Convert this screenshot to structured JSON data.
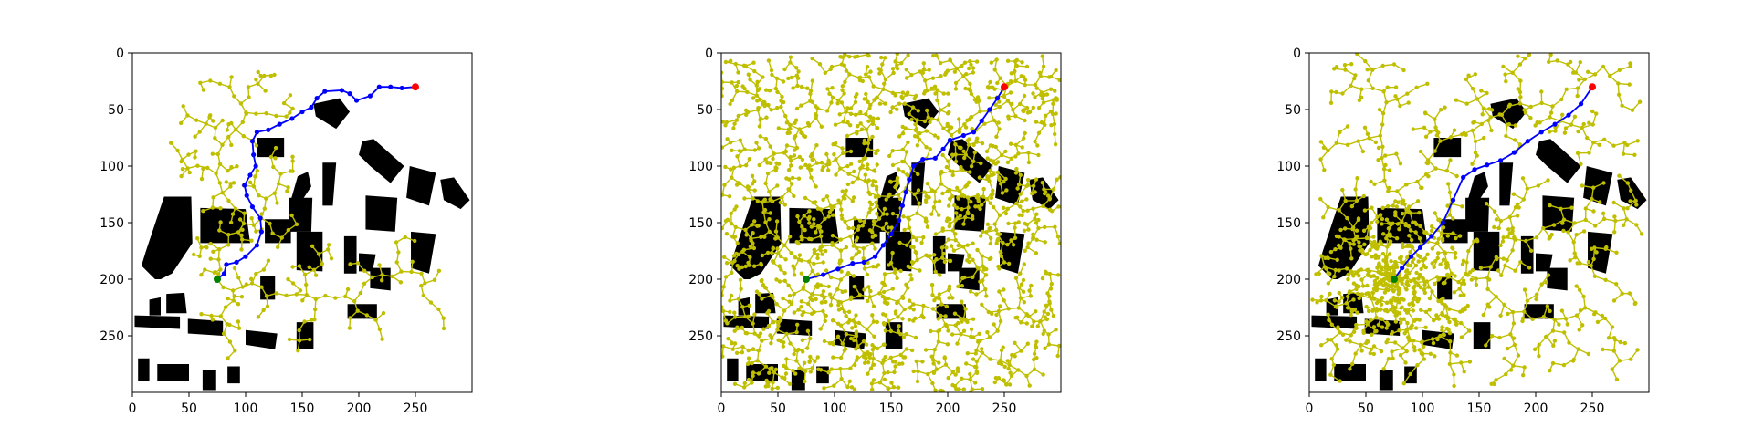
{
  "chart_data": [
    {
      "type": "scatter",
      "title": "",
      "xlabel": "",
      "ylabel": "",
      "xlim": [
        0,
        300
      ],
      "ylim": [
        300,
        0
      ],
      "y_inverted": true,
      "x_ticks": [
        "0",
        "50",
        "100",
        "150",
        "200",
        "250"
      ],
      "y_ticks": [
        "0",
        "50",
        "100",
        "150",
        "200",
        "250"
      ],
      "grid": false,
      "legend": "none",
      "start": {
        "x": 75,
        "y": 200
      },
      "goal": {
        "x": 250,
        "y": 30
      },
      "path": [
        [
          75,
          200
        ],
        [
          81,
          195
        ],
        [
          83,
          187
        ],
        [
          92,
          185
        ],
        [
          100,
          180
        ],
        [
          110,
          170
        ],
        [
          114,
          158
        ],
        [
          113,
          146
        ],
        [
          106,
          136
        ],
        [
          101,
          126
        ],
        [
          99,
          117
        ],
        [
          104,
          108
        ],
        [
          109,
          100
        ],
        [
          107,
          90
        ],
        [
          106,
          78
        ],
        [
          110,
          70
        ],
        [
          120,
          68
        ],
        [
          130,
          63
        ],
        [
          141,
          58
        ],
        [
          150,
          52
        ],
        [
          158,
          48
        ],
        [
          163,
          40
        ],
        [
          170,
          34
        ],
        [
          185,
          33
        ],
        [
          192,
          36
        ],
        [
          198,
          42
        ],
        [
          210,
          38
        ],
        [
          218,
          30
        ],
        [
          228,
          30
        ],
        [
          238,
          31
        ],
        [
          250,
          30
        ]
      ],
      "tree_density": "sparse"
    },
    {
      "type": "scatter",
      "title": "",
      "xlabel": "",
      "ylabel": "",
      "xlim": [
        0,
        300
      ],
      "ylim": [
        300,
        0
      ],
      "y_inverted": true,
      "x_ticks": [
        "0",
        "50",
        "100",
        "150",
        "200",
        "250"
      ],
      "y_ticks": [
        "0",
        "50",
        "100",
        "150",
        "200",
        "250"
      ],
      "grid": false,
      "legend": "none",
      "start": {
        "x": 75,
        "y": 200
      },
      "goal": {
        "x": 250,
        "y": 30
      },
      "path": [
        [
          75,
          200
        ],
        [
          90,
          196
        ],
        [
          103,
          191
        ],
        [
          116,
          186
        ],
        [
          126,
          185
        ],
        [
          136,
          180
        ],
        [
          143,
          170
        ],
        [
          150,
          160
        ],
        [
          157,
          148
        ],
        [
          160,
          135
        ],
        [
          163,
          123
        ],
        [
          166,
          112
        ],
        [
          170,
          100
        ],
        [
          178,
          94
        ],
        [
          189,
          93
        ],
        [
          196,
          85
        ],
        [
          202,
          77
        ],
        [
          214,
          73
        ],
        [
          223,
          70
        ],
        [
          230,
          60
        ],
        [
          237,
          50
        ],
        [
          244,
          40
        ],
        [
          250,
          30
        ]
      ],
      "tree_density": "dense"
    },
    {
      "type": "scatter",
      "title": "",
      "xlabel": "",
      "ylabel": "",
      "xlim": [
        0,
        300
      ],
      "ylim": [
        300,
        0
      ],
      "y_inverted": true,
      "x_ticks": [
        "0",
        "50",
        "100",
        "150",
        "200",
        "250"
      ],
      "y_ticks": [
        "0",
        "50",
        "100",
        "150",
        "200",
        "250"
      ],
      "grid": false,
      "legend": "none",
      "start": {
        "x": 75,
        "y": 200
      },
      "goal": {
        "x": 250,
        "y": 30
      },
      "path": [
        [
          75,
          200
        ],
        [
          82,
          190
        ],
        [
          90,
          180
        ],
        [
          98,
          172
        ],
        [
          108,
          162
        ],
        [
          118,
          150
        ],
        [
          127,
          130
        ],
        [
          136,
          110
        ],
        [
          146,
          103
        ],
        [
          157,
          99
        ],
        [
          169,
          95
        ],
        [
          181,
          88
        ],
        [
          193,
          78
        ],
        [
          205,
          70
        ],
        [
          217,
          63
        ],
        [
          229,
          55
        ],
        [
          240,
          45
        ],
        [
          250,
          30
        ]
      ],
      "tree_density": "radial"
    }
  ],
  "colors": {
    "tree": "#bfbf00",
    "path": "#0000ff",
    "start": "#008000",
    "goal": "#ff0000",
    "obstacle": "#000000"
  }
}
